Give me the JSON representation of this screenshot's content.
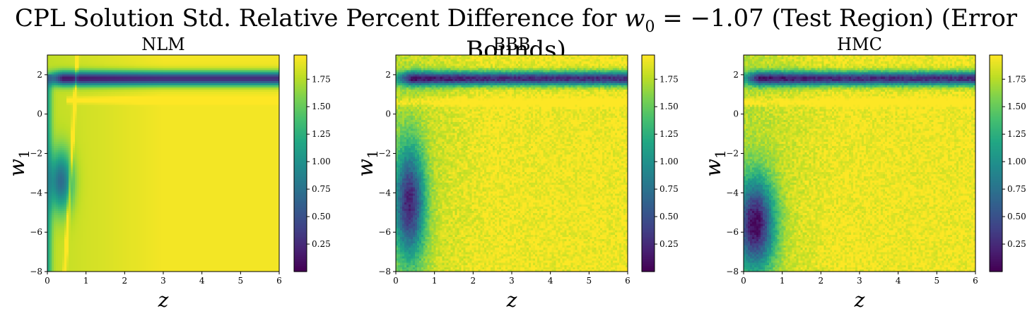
{
  "figure": {
    "title_prefix": "CPL Solution Std. Relative Percent Difference for",
    "title_param": "w",
    "title_param_sub": "0",
    "title_equals": " = −1.07",
    "title_suffix": "(Test Region) (Error Bounds)"
  },
  "chart_data": [
    {
      "type": "heatmap",
      "title": "NLM",
      "xlabel": "z",
      "ylabel": "w",
      "ylabel_sub": "1",
      "xlim": [
        0,
        6
      ],
      "ylim": [
        -8,
        3
      ],
      "xticks": [
        "0",
        "1",
        "2",
        "3",
        "4",
        "5",
        "6"
      ],
      "yticks": [
        "−8",
        "−6",
        "−4",
        "−2",
        "0",
        "2"
      ],
      "colorbar": {
        "min": 0.0,
        "max": 1.97,
        "ticks": [
          "0.25",
          "0.50",
          "0.75",
          "1.00",
          "1.25",
          "1.50",
          "1.75"
        ],
        "colormap": "viridis"
      },
      "values": "Relative percent difference of std. over z ∈ [0,6], w1 ∈ [-8,3]; smooth field ~1.5–1.97, low band near w1≈1.8, low region near z≈0.4, w1≈-3.5"
    },
    {
      "type": "heatmap",
      "title": "BBB",
      "xlabel": "z",
      "ylabel": "w",
      "ylabel_sub": "1",
      "xlim": [
        0,
        6
      ],
      "ylim": [
        -8,
        3
      ],
      "xticks": [
        "0",
        "1",
        "2",
        "3",
        "4",
        "5",
        "6"
      ],
      "yticks": [
        "−8",
        "−6",
        "−4",
        "−2",
        "0",
        "2"
      ],
      "colorbar": {
        "min": 0.0,
        "max": 1.97,
        "ticks": [
          "0.25",
          "0.50",
          "0.75",
          "1.00",
          "1.25",
          "1.50",
          "1.75"
        ],
        "colormap": "viridis"
      },
      "values": "Noisy field ~1.6–1.97, low band near w1≈1.8, deep low region near z≈0.35, w1≈-4.5"
    },
    {
      "type": "heatmap",
      "title": "HMC",
      "xlabel": "z",
      "ylabel": "w",
      "ylabel_sub": "1",
      "xlim": [
        0,
        6
      ],
      "ylim": [
        -8,
        3
      ],
      "xticks": [
        "0",
        "1",
        "2",
        "3",
        "4",
        "5",
        "6"
      ],
      "yticks": [
        "−8",
        "−6",
        "−4",
        "−2",
        "0",
        "2"
      ],
      "colorbar": {
        "min": 0.0,
        "max": 1.97,
        "ticks": [
          "0.25",
          "0.50",
          "0.75",
          "1.00",
          "1.25",
          "1.50",
          "1.75"
        ],
        "colormap": "viridis"
      },
      "values": "Noisy field ~1.6–1.97, low band near w1≈1.8, deep low region near z≈0.3, w1≈-5.5"
    }
  ]
}
